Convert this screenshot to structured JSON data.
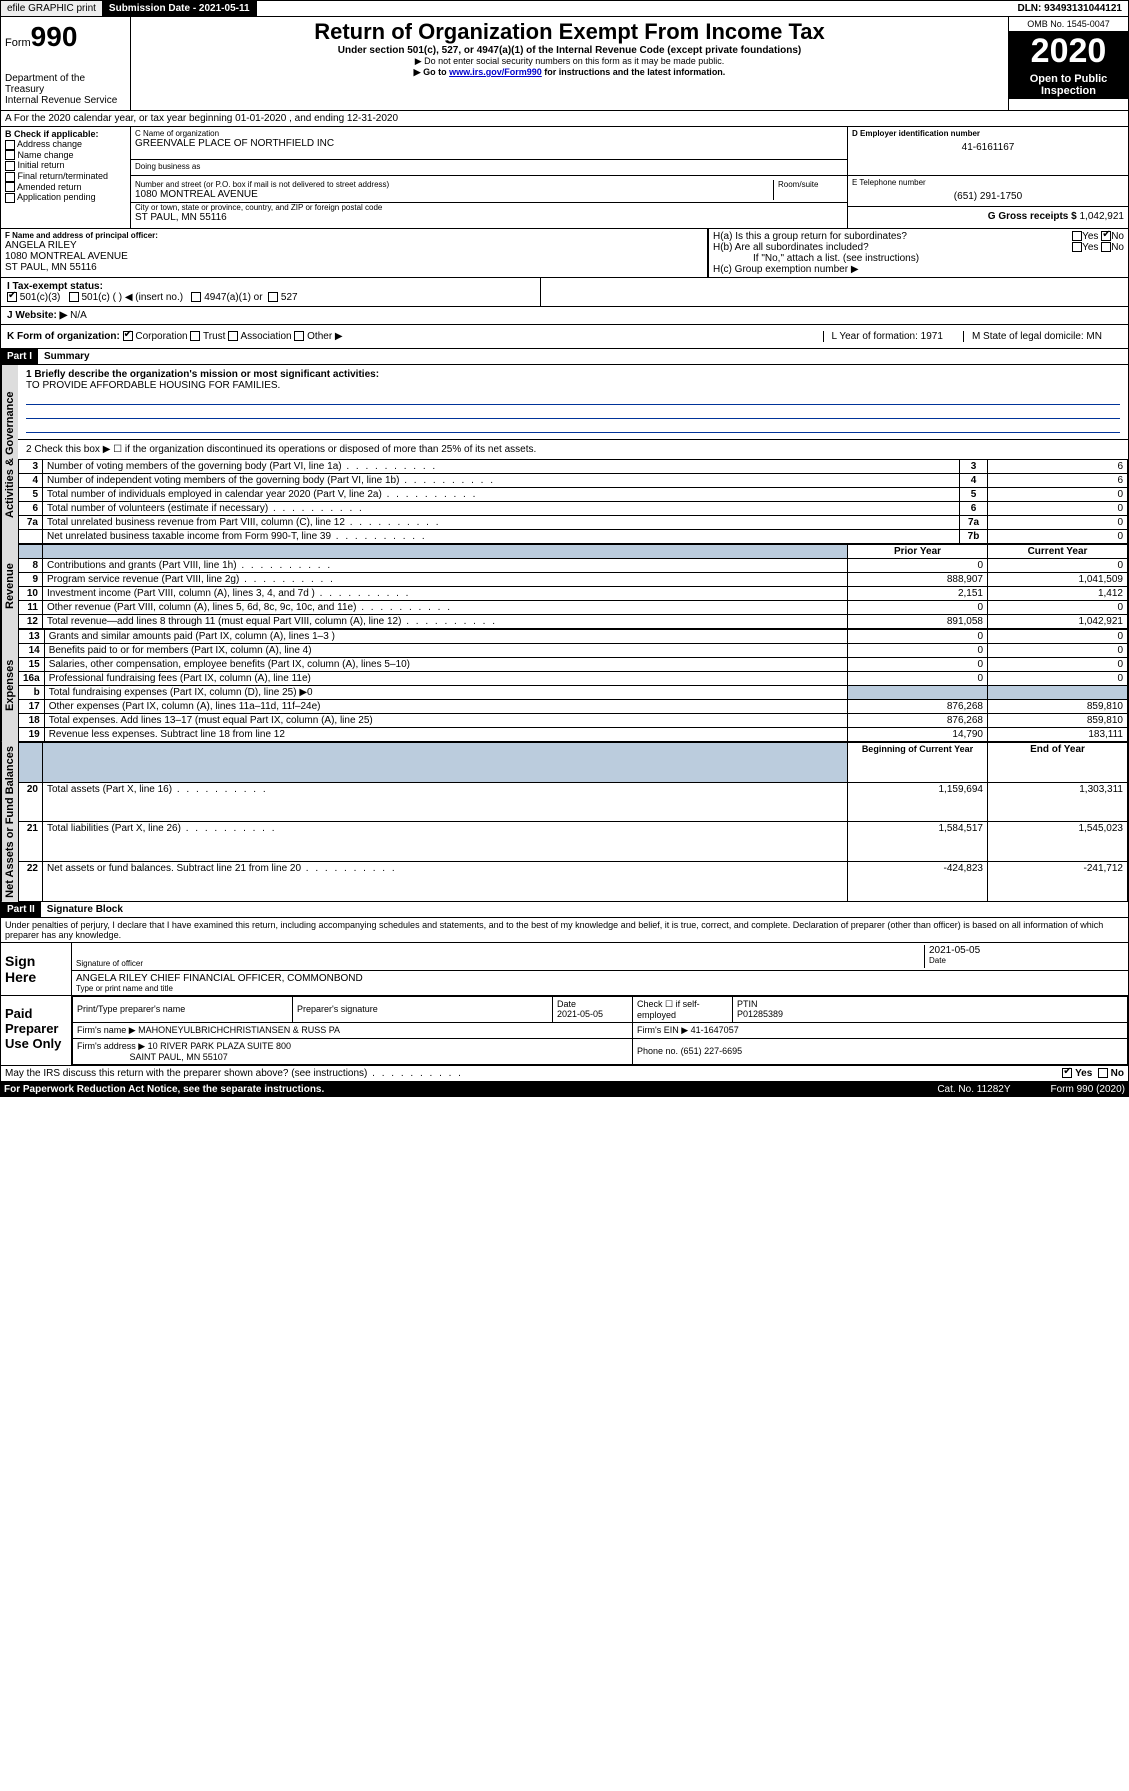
{
  "topbar": {
    "efile": "efile GRAPHIC print",
    "submission": "Submission Date - 2021-05-11",
    "dln": "DLN: 93493131044121"
  },
  "header": {
    "form_label": "Form",
    "form_number": "990",
    "dept": "Department of the Treasury",
    "irs": "Internal Revenue Service",
    "title": "Return of Organization Exempt From Income Tax",
    "subtitle": "Under section 501(c), 527, or 4947(a)(1) of the Internal Revenue Code (except private foundations)",
    "note1": "▶ Do not enter social security numbers on this form as it may be made public.",
    "note2_pre": "▶ Go to ",
    "note2_link": "www.irs.gov/Form990",
    "note2_post": " for instructions and the latest information.",
    "omb": "OMB No. 1545-0047",
    "year": "2020",
    "open": "Open to Public Inspection"
  },
  "row_a": "A For the 2020 calendar year, or tax year beginning 01-01-2020   , and ending 12-31-2020",
  "section_b": {
    "header": "B Check if applicable:",
    "items": [
      "Address change",
      "Name change",
      "Initial return",
      "Final return/terminated",
      "Amended return",
      "Application pending"
    ]
  },
  "section_c": {
    "label": "C Name of organization",
    "name": "GREENVALE PLACE OF NORTHFIELD INC",
    "dba_label": "Doing business as",
    "street_label": "Number and street (or P.O. box if mail is not delivered to street address)",
    "room_label": "Room/suite",
    "street": "1080 MONTREAL AVENUE",
    "city_label": "City or town, state or province, country, and ZIP or foreign postal code",
    "city": "ST PAUL, MN  55116"
  },
  "section_d": {
    "label": "D Employer identification number",
    "value": "41-6161167"
  },
  "section_e": {
    "label": "E Telephone number",
    "value": "(651) 291-1750"
  },
  "section_g": {
    "label": "G Gross receipts $",
    "value": "1,042,921"
  },
  "section_f": {
    "label": "F  Name and address of principal officer:",
    "name": "ANGELA RILEY",
    "street": "1080 MONTREAL AVENUE",
    "city": "ST PAUL, MN  55116"
  },
  "section_h": {
    "ha": "H(a)  Is this a group return for subordinates?",
    "hb": "H(b)  Are all subordinates included?",
    "hb_note": "If \"No,\" attach a list. (see instructions)",
    "hc": "H(c)  Group exemption number ▶"
  },
  "row_i": {
    "label": "I   Tax-exempt status:",
    "opts": [
      "501(c)(3)",
      "501(c) (  ) ◀ (insert no.)",
      "4947(a)(1) or",
      "527"
    ]
  },
  "row_j": {
    "label": "J   Website: ▶",
    "value": "N/A"
  },
  "row_k": {
    "label": "K Form of organization:",
    "opts": [
      "Corporation",
      "Trust",
      "Association",
      "Other ▶"
    ],
    "l": "L Year of formation: 1971",
    "m": "M State of legal domicile: MN"
  },
  "part1": {
    "header": "Part I",
    "title": "Summary"
  },
  "mission": {
    "label": "1  Briefly describe the organization's mission or most significant activities:",
    "text": "TO PROVIDE AFFORDABLE HOUSING FOR FAMILIES."
  },
  "line2": "2   Check this box ▶ ☐  if the organization discontinued its operations or disposed of more than 25% of its net assets.",
  "governance_lines": [
    {
      "n": "3",
      "t": "Number of voting members of the governing body (Part VI, line 1a)",
      "box": "3",
      "v": "6"
    },
    {
      "n": "4",
      "t": "Number of independent voting members of the governing body (Part VI, line 1b)",
      "box": "4",
      "v": "6"
    },
    {
      "n": "5",
      "t": "Total number of individuals employed in calendar year 2020 (Part V, line 2a)",
      "box": "5",
      "v": "0"
    },
    {
      "n": "6",
      "t": "Total number of volunteers (estimate if necessary)",
      "box": "6",
      "v": "0"
    },
    {
      "n": "7a",
      "t": "Total unrelated business revenue from Part VIII, column (C), line 12",
      "box": "7a",
      "v": "0"
    },
    {
      "n": "",
      "t": "Net unrelated business taxable income from Form 990-T, line 39",
      "box": "7b",
      "v": "0"
    }
  ],
  "col_headers": {
    "prior": "Prior Year",
    "current": "Current Year"
  },
  "revenue_lines": [
    {
      "n": "8",
      "t": "Contributions and grants (Part VIII, line 1h)",
      "p": "0",
      "c": "0"
    },
    {
      "n": "9",
      "t": "Program service revenue (Part VIII, line 2g)",
      "p": "888,907",
      "c": "1,041,509"
    },
    {
      "n": "10",
      "t": "Investment income (Part VIII, column (A), lines 3, 4, and 7d )",
      "p": "2,151",
      "c": "1,412"
    },
    {
      "n": "11",
      "t": "Other revenue (Part VIII, column (A), lines 5, 6d, 8c, 9c, 10c, and 11e)",
      "p": "0",
      "c": "0"
    },
    {
      "n": "12",
      "t": "Total revenue—add lines 8 through 11 (must equal Part VIII, column (A), line 12)",
      "p": "891,058",
      "c": "1,042,921"
    }
  ],
  "expense_lines": [
    {
      "n": "13",
      "t": "Grants and similar amounts paid (Part IX, column (A), lines 1–3 )",
      "p": "0",
      "c": "0"
    },
    {
      "n": "14",
      "t": "Benefits paid to or for members (Part IX, column (A), line 4)",
      "p": "0",
      "c": "0"
    },
    {
      "n": "15",
      "t": "Salaries, other compensation, employee benefits (Part IX, column (A), lines 5–10)",
      "p": "0",
      "c": "0"
    },
    {
      "n": "16a",
      "t": "Professional fundraising fees (Part IX, column (A), line 11e)",
      "p": "0",
      "c": "0"
    },
    {
      "n": "b",
      "t": "Total fundraising expenses (Part IX, column (D), line 25) ▶0",
      "p": "",
      "c": "",
      "shaded": true
    },
    {
      "n": "17",
      "t": "Other expenses (Part IX, column (A), lines 11a–11d, 11f–24e)",
      "p": "876,268",
      "c": "859,810"
    },
    {
      "n": "18",
      "t": "Total expenses. Add lines 13–17 (must equal Part IX, column (A), line 25)",
      "p": "876,268",
      "c": "859,810"
    },
    {
      "n": "19",
      "t": "Revenue less expenses. Subtract line 18 from line 12",
      "p": "14,790",
      "c": "183,111"
    }
  ],
  "net_headers": {
    "begin": "Beginning of Current Year",
    "end": "End of Year"
  },
  "net_lines": [
    {
      "n": "20",
      "t": "Total assets (Part X, line 16)",
      "p": "1,159,694",
      "c": "1,303,311"
    },
    {
      "n": "21",
      "t": "Total liabilities (Part X, line 26)",
      "p": "1,584,517",
      "c": "1,545,023"
    },
    {
      "n": "22",
      "t": "Net assets or fund balances. Subtract line 21 from line 20",
      "p": "-424,823",
      "c": "-241,712"
    }
  ],
  "part2": {
    "header": "Part II",
    "title": "Signature Block"
  },
  "perjury": "Under penalties of perjury, I declare that I have examined this return, including accompanying schedules and statements, and to the best of my knowledge and belief, it is true, correct, and complete. Declaration of preparer (other than officer) is based on all information of which preparer has any knowledge.",
  "sign": {
    "here": "Sign Here",
    "sig_label": "Signature of officer",
    "date": "2021-05-05",
    "date_label": "Date",
    "name": "ANGELA RILEY  CHIEF FINANCIAL OFFICER, COMMONBOND",
    "name_label": "Type or print name and title"
  },
  "preparer": {
    "here": "Paid Preparer Use Only",
    "h1": "Print/Type preparer's name",
    "h2": "Preparer's signature",
    "h3": "Date",
    "date": "2021-05-05",
    "check_label": "Check ☐ if self-employed",
    "ptin_label": "PTIN",
    "ptin": "P01285389",
    "firm_name_label": "Firm's name     ▶",
    "firm_name": "MAHONEYULBRICHCHRISTIANSEN & RUSS PA",
    "firm_ein_label": "Firm's EIN ▶",
    "firm_ein": "41-1647057",
    "firm_addr_label": "Firm's address ▶",
    "firm_addr1": "10 RIVER PARK PLAZA SUITE 800",
    "firm_addr2": "SAINT PAUL, MN  55107",
    "phone_label": "Phone no.",
    "phone": "(651) 227-6695"
  },
  "discuss": "May the IRS discuss this return with the preparer shown above? (see instructions)",
  "footer": {
    "paperwork": "For Paperwork Reduction Act Notice, see the separate instructions.",
    "cat": "Cat. No. 11282Y",
    "form": "Form 990 (2020)"
  },
  "vtabs": {
    "gov": "Activities & Governance",
    "rev": "Revenue",
    "exp": "Expenses",
    "net": "Net Assets or Fund Balances"
  }
}
